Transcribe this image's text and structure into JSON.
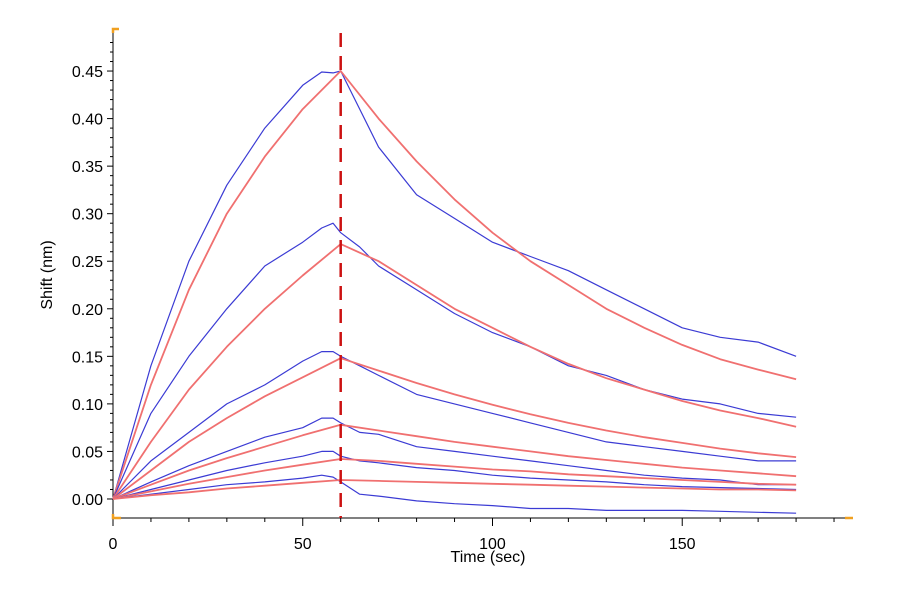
{
  "chart_data": {
    "type": "line",
    "xlabel": "Time (sec)",
    "ylabel": "Shift (nm)",
    "xlim": [
      0,
      195
    ],
    "ylim": [
      -0.02,
      0.49
    ],
    "x_ticks": [
      0,
      50,
      100,
      150
    ],
    "y_ticks": [
      0.0,
      0.05,
      0.1,
      0.15,
      0.2,
      0.25,
      0.3,
      0.35,
      0.4,
      0.45
    ],
    "x_tick_labels": [
      "0",
      "50",
      "100",
      "150"
    ],
    "y_tick_labels": [
      "0.00",
      "0.05",
      "0.10",
      "0.15",
      "0.20",
      "0.25",
      "0.30",
      "0.35",
      "0.40",
      "0.45"
    ],
    "dissociation_start": 60,
    "grid": false,
    "colors": {
      "data": "#3b3bd4",
      "fit": "#f07070",
      "marker": "#cc1111",
      "corner": "#f0a020"
    },
    "series": [
      {
        "role": "data",
        "x": [
          0,
          10,
          20,
          30,
          40,
          50,
          55,
          58,
          60,
          65,
          70,
          80,
          90,
          100,
          110,
          120,
          130,
          140,
          150,
          160,
          170,
          180
        ],
        "y": [
          0.0,
          0.14,
          0.25,
          0.33,
          0.39,
          0.435,
          0.449,
          0.448,
          0.45,
          0.41,
          0.37,
          0.32,
          0.295,
          0.27,
          0.255,
          0.24,
          0.22,
          0.2,
          0.18,
          0.17,
          0.165,
          0.15
        ]
      },
      {
        "role": "fit",
        "x": [
          0,
          10,
          20,
          30,
          40,
          50,
          60,
          70,
          80,
          90,
          100,
          110,
          120,
          130,
          140,
          150,
          160,
          170,
          180
        ],
        "y": [
          0.0,
          0.12,
          0.22,
          0.3,
          0.36,
          0.41,
          0.45,
          0.4,
          0.355,
          0.315,
          0.28,
          0.25,
          0.225,
          0.2,
          0.18,
          0.162,
          0.147,
          0.136,
          0.126
        ]
      },
      {
        "role": "data",
        "x": [
          0,
          10,
          20,
          30,
          40,
          50,
          55,
          58,
          60,
          65,
          70,
          80,
          90,
          100,
          110,
          120,
          130,
          140,
          150,
          160,
          170,
          180
        ],
        "y": [
          0.0,
          0.09,
          0.15,
          0.2,
          0.245,
          0.27,
          0.285,
          0.29,
          0.28,
          0.265,
          0.245,
          0.22,
          0.195,
          0.175,
          0.16,
          0.14,
          0.13,
          0.115,
          0.105,
          0.1,
          0.09,
          0.086
        ]
      },
      {
        "role": "fit",
        "x": [
          0,
          10,
          20,
          30,
          40,
          50,
          60,
          70,
          80,
          90,
          100,
          110,
          120,
          130,
          140,
          150,
          160,
          170,
          180
        ],
        "y": [
          0.0,
          0.06,
          0.115,
          0.16,
          0.2,
          0.235,
          0.268,
          0.25,
          0.225,
          0.2,
          0.18,
          0.16,
          0.142,
          0.127,
          0.115,
          0.103,
          0.093,
          0.085,
          0.076
        ]
      },
      {
        "role": "data",
        "x": [
          0,
          10,
          20,
          30,
          40,
          50,
          55,
          58,
          60,
          65,
          70,
          80,
          90,
          100,
          110,
          120,
          130,
          140,
          150,
          160,
          170,
          180
        ],
        "y": [
          0.0,
          0.04,
          0.07,
          0.1,
          0.12,
          0.145,
          0.155,
          0.155,
          0.15,
          0.14,
          0.13,
          0.11,
          0.1,
          0.09,
          0.08,
          0.07,
          0.06,
          0.055,
          0.05,
          0.045,
          0.04,
          0.04
        ]
      },
      {
        "role": "fit",
        "x": [
          0,
          10,
          20,
          30,
          40,
          50,
          60,
          70,
          80,
          90,
          100,
          110,
          120,
          130,
          140,
          150,
          160,
          170,
          180
        ],
        "y": [
          0.0,
          0.03,
          0.06,
          0.085,
          0.108,
          0.128,
          0.148,
          0.135,
          0.122,
          0.11,
          0.099,
          0.089,
          0.08,
          0.072,
          0.065,
          0.059,
          0.053,
          0.048,
          0.044
        ]
      },
      {
        "role": "data",
        "x": [
          0,
          10,
          20,
          30,
          40,
          50,
          55,
          58,
          60,
          65,
          70,
          80,
          90,
          100,
          110,
          120,
          130,
          140,
          150,
          160,
          170,
          180
        ],
        "y": [
          0.0,
          0.018,
          0.035,
          0.05,
          0.065,
          0.075,
          0.085,
          0.085,
          0.08,
          0.07,
          0.068,
          0.055,
          0.05,
          0.045,
          0.04,
          0.035,
          0.03,
          0.025,
          0.022,
          0.02,
          0.015,
          0.015
        ]
      },
      {
        "role": "fit",
        "x": [
          0,
          10,
          20,
          30,
          40,
          50,
          60,
          70,
          80,
          90,
          100,
          110,
          120,
          130,
          140,
          150,
          160,
          170,
          180
        ],
        "y": [
          0.0,
          0.015,
          0.03,
          0.043,
          0.055,
          0.067,
          0.078,
          0.072,
          0.066,
          0.06,
          0.055,
          0.05,
          0.045,
          0.041,
          0.037,
          0.033,
          0.03,
          0.027,
          0.024
        ]
      },
      {
        "role": "data",
        "x": [
          0,
          10,
          20,
          30,
          40,
          50,
          55,
          58,
          60,
          65,
          70,
          80,
          90,
          100,
          110,
          120,
          130,
          140,
          150,
          160,
          170,
          180
        ],
        "y": [
          0.0,
          0.01,
          0.02,
          0.03,
          0.038,
          0.045,
          0.05,
          0.05,
          0.045,
          0.04,
          0.038,
          0.033,
          0.03,
          0.025,
          0.022,
          0.02,
          0.018,
          0.015,
          0.013,
          0.012,
          0.011,
          0.01
        ]
      },
      {
        "role": "fit",
        "x": [
          0,
          10,
          20,
          30,
          40,
          50,
          60,
          70,
          80,
          90,
          100,
          110,
          120,
          130,
          140,
          150,
          160,
          170,
          180
        ],
        "y": [
          0.0,
          0.008,
          0.016,
          0.023,
          0.03,
          0.036,
          0.042,
          0.04,
          0.037,
          0.034,
          0.031,
          0.029,
          0.026,
          0.024,
          0.022,
          0.02,
          0.018,
          0.016,
          0.015
        ]
      },
      {
        "role": "data",
        "x": [
          0,
          10,
          20,
          30,
          40,
          50,
          55,
          58,
          60,
          65,
          70,
          80,
          90,
          100,
          110,
          120,
          130,
          140,
          150,
          160,
          170,
          180
        ],
        "y": [
          0.0,
          0.005,
          0.01,
          0.015,
          0.018,
          0.022,
          0.025,
          0.023,
          0.018,
          0.005,
          0.003,
          -0.002,
          -0.005,
          -0.007,
          -0.01,
          -0.01,
          -0.012,
          -0.012,
          -0.012,
          -0.013,
          -0.014,
          -0.015
        ]
      },
      {
        "role": "fit",
        "x": [
          0,
          10,
          20,
          30,
          40,
          50,
          60,
          70,
          80,
          90,
          100,
          110,
          120,
          130,
          140,
          150,
          160,
          170,
          180
        ],
        "y": [
          0.0,
          0.004,
          0.007,
          0.011,
          0.014,
          0.017,
          0.02,
          0.019,
          0.018,
          0.017,
          0.016,
          0.015,
          0.014,
          0.013,
          0.012,
          0.011,
          0.01,
          0.01,
          0.009
        ]
      }
    ]
  }
}
